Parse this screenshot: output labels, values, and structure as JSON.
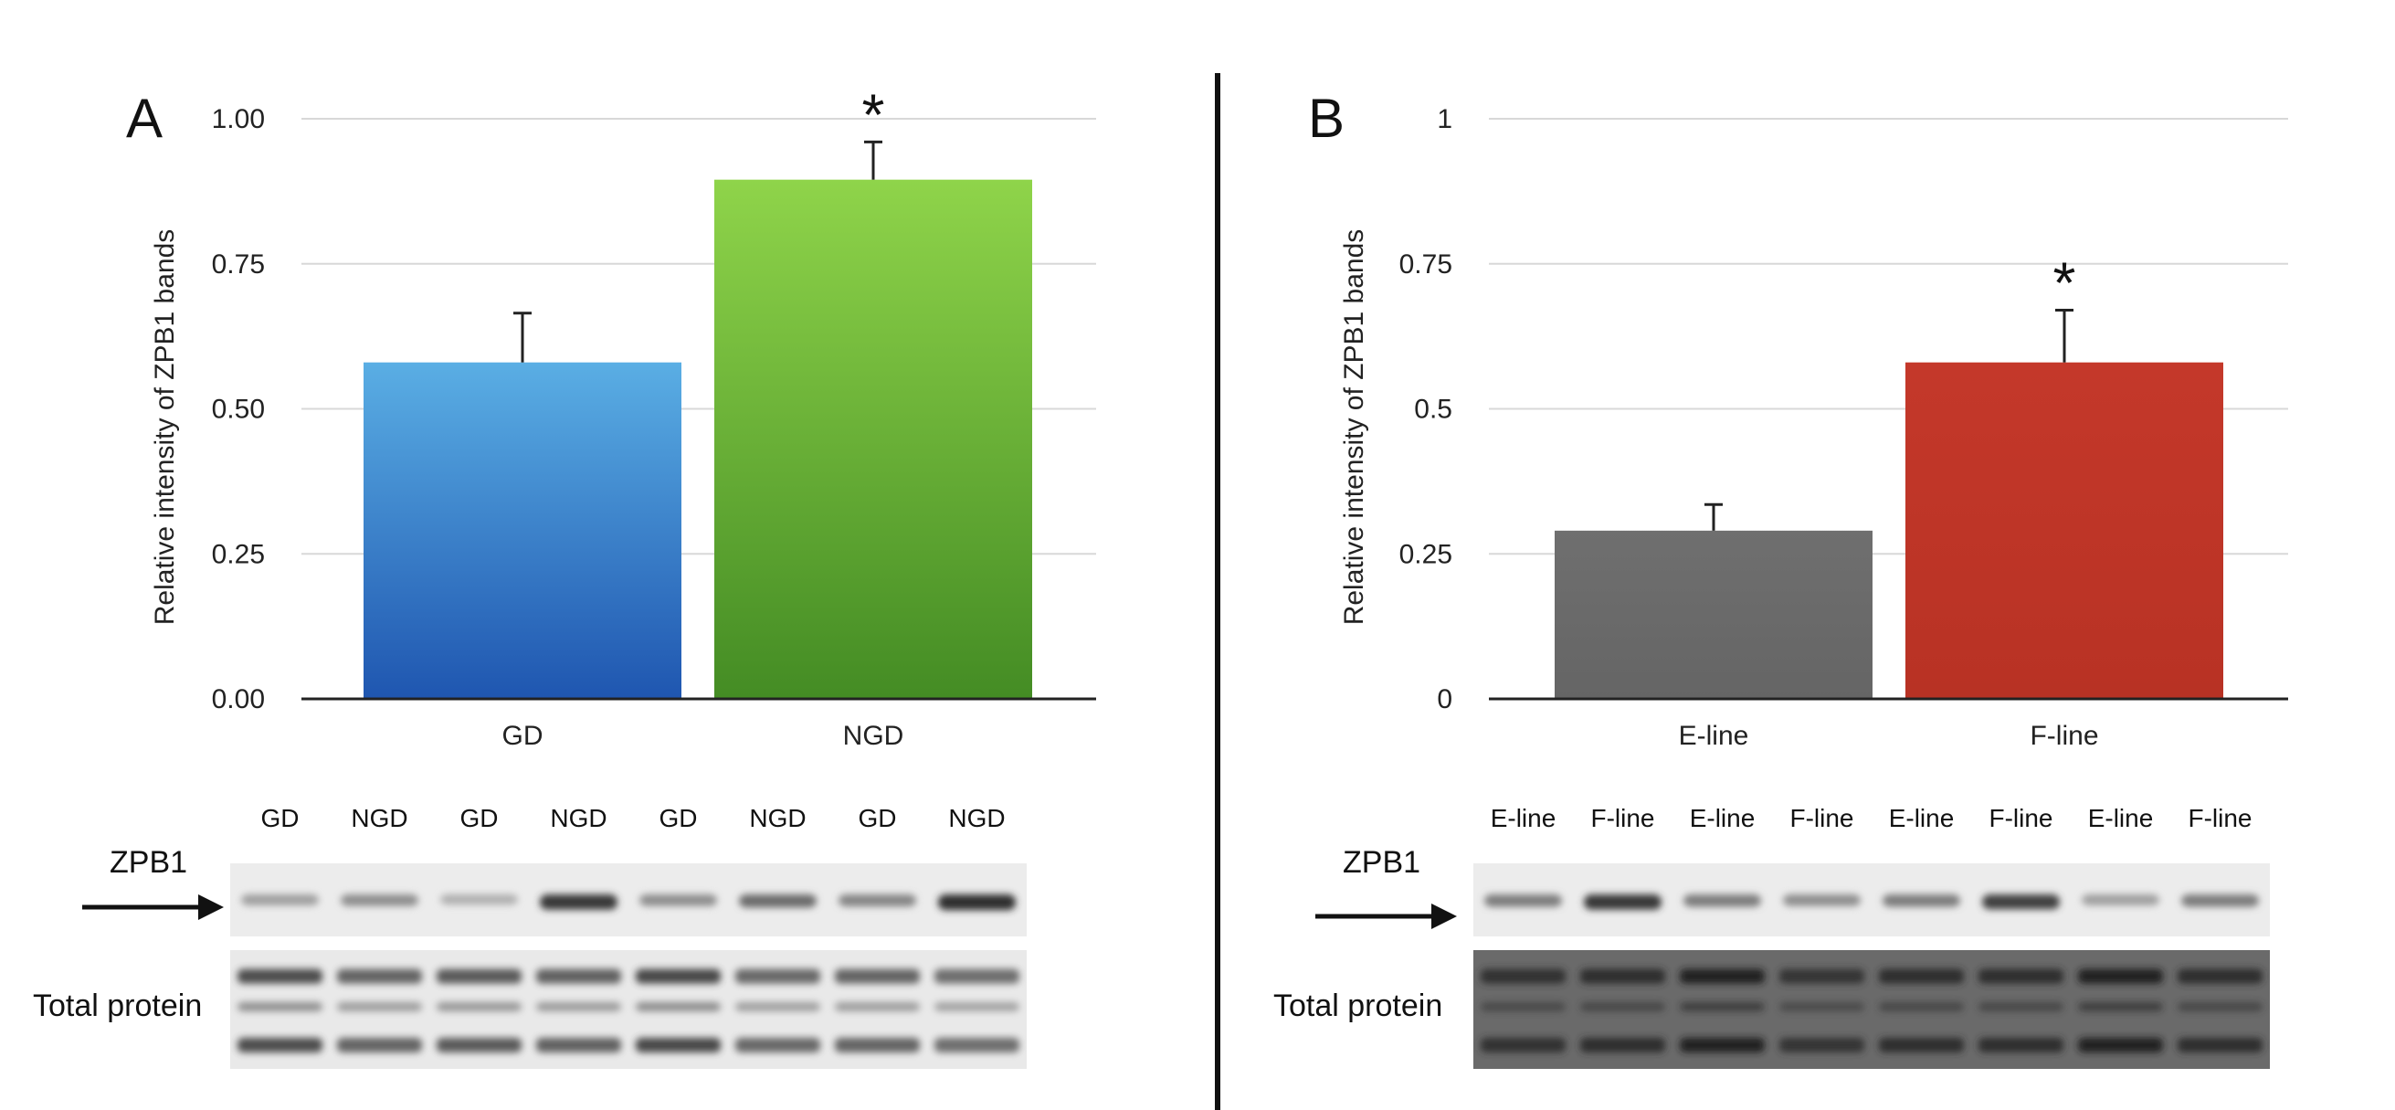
{
  "chart_data": [
    {
      "panel": "A",
      "type": "bar",
      "ylabel": "Relative intensity of ZPB1 bands",
      "ylim": [
        0,
        1
      ],
      "yticks": [
        "0.00",
        "0.25",
        "0.50",
        "0.75",
        "1.00"
      ],
      "categories": [
        "GD",
        "NGD"
      ],
      "values": [
        0.58,
        0.895
      ],
      "errors": [
        0.085,
        0.065
      ],
      "significance": [
        "",
        "*"
      ],
      "colors": [
        "#2f72c4",
        "#66b03a"
      ],
      "blot": {
        "lanes": [
          "GD",
          "NGD",
          "GD",
          "NGD",
          "GD",
          "NGD",
          "GD",
          "NGD"
        ],
        "band_label": "ZPB1",
        "loading_label": "Total protein"
      }
    },
    {
      "panel": "B",
      "type": "bar",
      "ylabel": "Relative intensity of ZPB1 bands",
      "ylim": [
        0,
        1
      ],
      "yticks": [
        "0",
        "0.25",
        "0.5",
        "0.75",
        "1"
      ],
      "categories": [
        "E-line",
        "F-line"
      ],
      "values": [
        0.29,
        0.58
      ],
      "errors": [
        0.045,
        0.09
      ],
      "significance": [
        "",
        "*"
      ],
      "colors": [
        "#6e6e6e",
        "#c0392b"
      ],
      "blot": {
        "lanes": [
          "E-line",
          "F-line",
          "E-line",
          "F-line",
          "E-line",
          "F-line",
          "E-line",
          "F-line"
        ],
        "band_label": "ZPB1",
        "loading_label": "Total protein"
      }
    }
  ]
}
